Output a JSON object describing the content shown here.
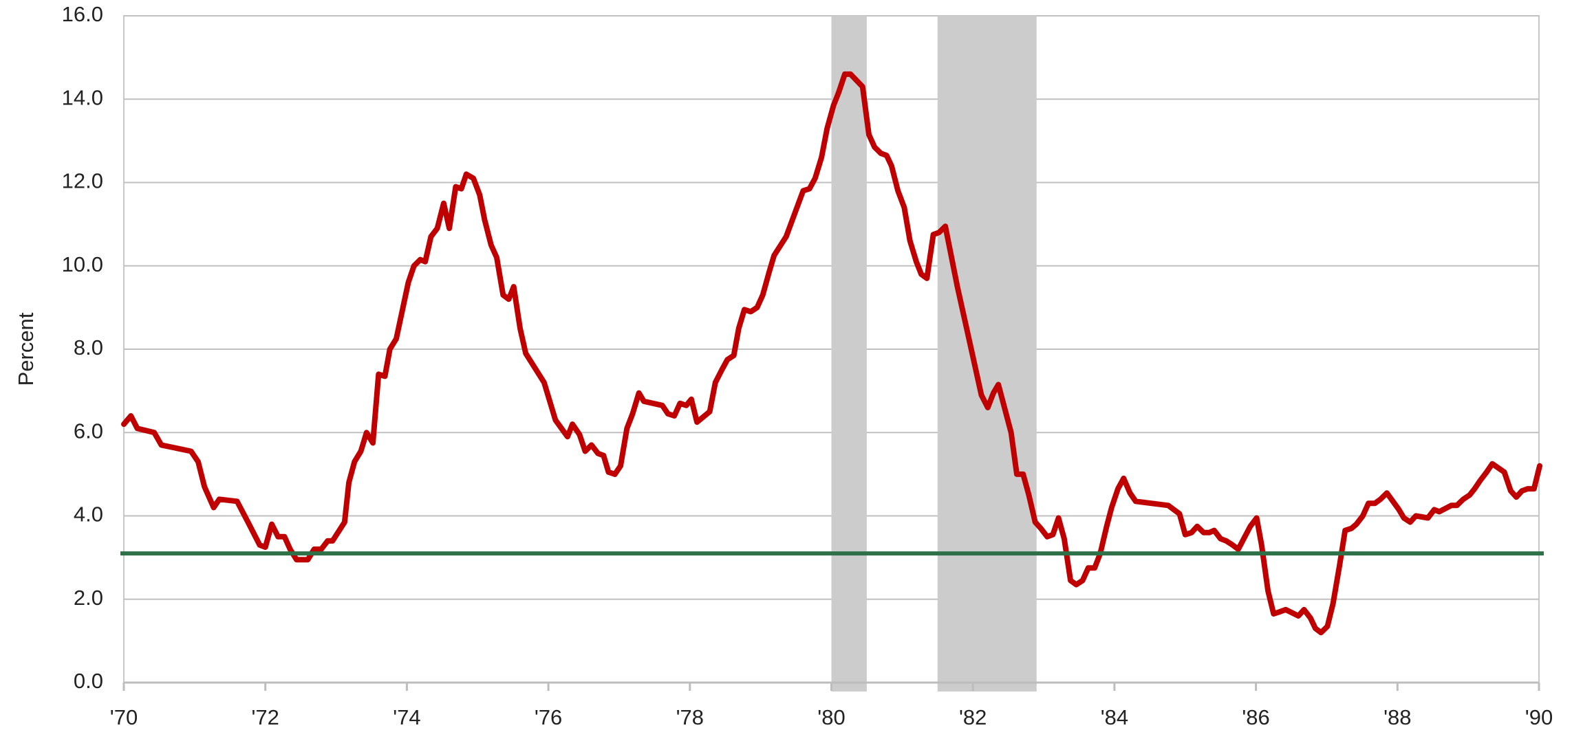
{
  "chart_data": {
    "type": "line",
    "y_label": "Percent",
    "x": [
      1970.0,
      1970.1,
      1970.19,
      1970.43,
      1970.53,
      1970.95,
      1971.05,
      1971.14,
      1971.27,
      1971.35,
      1971.6,
      1971.77,
      1971.92,
      1972.0,
      1972.09,
      1972.18,
      1972.27,
      1972.35,
      1972.44,
      1972.6,
      1972.69,
      1972.79,
      1972.88,
      1972.95,
      1973.12,
      1973.18,
      1973.26,
      1973.35,
      1973.43,
      1973.52,
      1973.6,
      1973.69,
      1973.76,
      1973.85,
      1974.02,
      1974.1,
      1974.19,
      1974.26,
      1974.34,
      1974.43,
      1974.52,
      1974.6,
      1974.69,
      1974.77,
      1974.84,
      1974.94,
      1975.03,
      1975.1,
      1975.19,
      1975.27,
      1975.36,
      1975.44,
      1975.51,
      1975.6,
      1975.68,
      1975.94,
      1976.1,
      1976.27,
      1976.34,
      1976.44,
      1976.52,
      1976.61,
      1976.7,
      1976.78,
      1976.85,
      1976.94,
      1977.02,
      1977.11,
      1977.19,
      1977.28,
      1977.35,
      1977.61,
      1977.69,
      1977.78,
      1977.86,
      1977.95,
      1978.02,
      1978.1,
      1978.28,
      1978.36,
      1978.45,
      1978.53,
      1978.62,
      1978.69,
      1978.77,
      1978.86,
      1978.95,
      1979.03,
      1979.12,
      1979.19,
      1979.36,
      1979.6,
      1979.69,
      1979.77,
      1979.86,
      1979.94,
      1980.03,
      1980.1,
      1980.19,
      1980.27,
      1980.44,
      1980.53,
      1980.61,
      1980.7,
      1980.78,
      1980.85,
      1980.94,
      1981.03,
      1981.11,
      1981.2,
      1981.27,
      1981.35,
      1981.44,
      1981.52,
      1981.61,
      1981.78,
      1981.95,
      1982.12,
      1982.21,
      1982.29,
      1982.36,
      1982.54,
      1982.62,
      1982.71,
      1982.79,
      1982.88,
      1982.96,
      1983.05,
      1983.13,
      1983.21,
      1983.29,
      1983.38,
      1983.46,
      1983.55,
      1983.63,
      1983.72,
      1983.8,
      1983.89,
      1983.96,
      1984.05,
      1984.13,
      1984.22,
      1984.3,
      1984.76,
      1984.92,
      1985.0,
      1985.09,
      1985.17,
      1985.26,
      1985.34,
      1985.41,
      1985.5,
      1985.58,
      1985.67,
      1985.75,
      1985.92,
      1986.01,
      1986.08,
      1986.17,
      1986.25,
      1986.34,
      1986.42,
      1986.6,
      1986.68,
      1986.77,
      1986.84,
      1986.92,
      1987.01,
      1987.09,
      1987.18,
      1987.26,
      1987.35,
      1987.42,
      1987.51,
      1987.59,
      1987.68,
      1987.76,
      1987.85,
      1988.02,
      1988.09,
      1988.18,
      1988.26,
      1988.43,
      1988.52,
      1988.59,
      1988.76,
      1988.84,
      1988.93,
      1989.02,
      1989.09,
      1989.17,
      1989.26,
      1989.34,
      1989.51,
      1989.6,
      1989.68,
      1989.76,
      1989.84,
      1989.93,
      1990.01
    ],
    "series": [
      {
        "color": "#c00000",
        "values": [
          6.2,
          6.4,
          6.1,
          6.0,
          5.7,
          5.55,
          5.3,
          4.7,
          4.2,
          4.4,
          4.35,
          3.8,
          3.3,
          3.25,
          3.8,
          3.5,
          3.5,
          3.2,
          2.95,
          2.95,
          3.2,
          3.2,
          3.4,
          3.4,
          3.85,
          4.8,
          5.3,
          5.55,
          6.0,
          5.75,
          7.4,
          7.35,
          8.0,
          8.25,
          9.6,
          10.0,
          10.15,
          10.1,
          10.7,
          10.9,
          11.5,
          10.9,
          11.9,
          11.85,
          12.2,
          12.1,
          11.7,
          11.1,
          10.5,
          10.2,
          9.3,
          9.2,
          9.5,
          8.5,
          7.9,
          7.2,
          6.3,
          5.9,
          6.2,
          5.95,
          5.55,
          5.7,
          5.5,
          5.45,
          5.05,
          5.0,
          5.2,
          6.1,
          6.45,
          6.95,
          6.75,
          6.65,
          6.45,
          6.4,
          6.7,
          6.65,
          6.8,
          6.25,
          6.5,
          7.2,
          7.5,
          7.75,
          7.85,
          8.5,
          8.95,
          8.9,
          9.0,
          9.3,
          9.85,
          10.25,
          10.7,
          11.8,
          11.85,
          12.1,
          12.6,
          13.3,
          13.85,
          14.15,
          14.6,
          14.6,
          14.3,
          13.15,
          12.85,
          12.7,
          12.65,
          12.4,
          11.8,
          11.4,
          10.6,
          10.1,
          9.8,
          9.7,
          10.75,
          10.8,
          10.95,
          9.5,
          8.2,
          6.9,
          6.6,
          6.95,
          7.15,
          6.0,
          5.0,
          5.0,
          4.5,
          3.85,
          3.7,
          3.5,
          3.55,
          3.95,
          3.45,
          2.45,
          2.35,
          2.45,
          2.75,
          2.75,
          3.1,
          3.75,
          4.2,
          4.65,
          4.9,
          4.55,
          4.35,
          4.25,
          4.05,
          3.55,
          3.6,
          3.75,
          3.6,
          3.6,
          3.65,
          3.45,
          3.4,
          3.3,
          3.2,
          3.75,
          3.95,
          3.3,
          2.2,
          1.65,
          1.7,
          1.75,
          1.6,
          1.75,
          1.55,
          1.3,
          1.2,
          1.35,
          1.9,
          2.8,
          3.65,
          3.7,
          3.8,
          4.0,
          4.3,
          4.3,
          4.4,
          4.55,
          4.15,
          3.95,
          3.85,
          4.0,
          3.95,
          4.15,
          4.1,
          4.25,
          4.25,
          4.4,
          4.5,
          4.65,
          4.85,
          5.05,
          5.25,
          5.05,
          4.6,
          4.45,
          4.6,
          4.65,
          4.65,
          5.2
        ]
      }
    ],
    "recessions": [
      [
        1980.0,
        1980.5
      ],
      [
        1981.5,
        1982.9
      ]
    ],
    "recession_color": "#cccccc",
    "reference_line": 3.1,
    "reference_color": "#2e7048",
    "xlim": [
      1970,
      1990
    ],
    "xticks": [
      {
        "value": 1970,
        "label": "'70"
      },
      {
        "value": 1972,
        "label": "'72"
      },
      {
        "value": 1974,
        "label": "'74"
      },
      {
        "value": 1976,
        "label": "'76"
      },
      {
        "value": 1978,
        "label": "'78"
      },
      {
        "value": 1980,
        "label": "'80"
      },
      {
        "value": 1982,
        "label": "'82"
      },
      {
        "value": 1984,
        "label": "'84"
      },
      {
        "value": 1986,
        "label": "'86"
      },
      {
        "value": 1988,
        "label": "'88"
      },
      {
        "value": 1990,
        "label": "'90"
      }
    ],
    "ylim": [
      0,
      16
    ],
    "yticks": [
      {
        "value": 0,
        "label": "0.0"
      },
      {
        "value": 2,
        "label": "2.0"
      },
      {
        "value": 4,
        "label": "4.0"
      },
      {
        "value": 6,
        "label": "6.0"
      },
      {
        "value": 8,
        "label": "8.0"
      },
      {
        "value": 10,
        "label": "10.0"
      },
      {
        "value": 12,
        "label": "12.0"
      },
      {
        "value": 14,
        "label": "14.0"
      },
      {
        "value": 16,
        "label": "16.0"
      }
    ],
    "grid": true
  }
}
